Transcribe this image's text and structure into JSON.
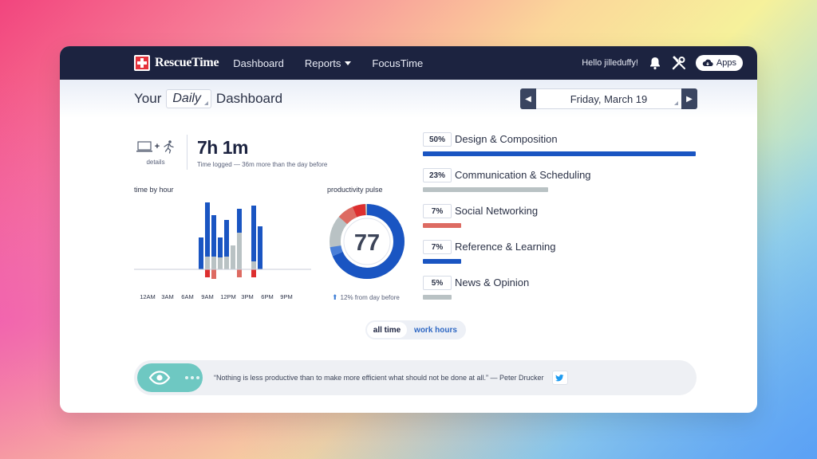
{
  "nav": {
    "brand": "RescueTime",
    "links": [
      "Dashboard",
      "Reports",
      "FocusTime"
    ],
    "greeting": "Hello jilleduffy!",
    "apps_label": "Apps"
  },
  "header": {
    "title_prefix": "Your",
    "period": "Daily",
    "title_suffix": "Dashboard",
    "date": "Friday, March 19"
  },
  "summary": {
    "details_label": "details",
    "total_time": "7h 1m",
    "total_sub": "Time logged — 36m more than the day before"
  },
  "time_by_hour": {
    "label": "time by hour",
    "tick_labels": [
      "12AM",
      "3AM",
      "6AM",
      "9AM",
      "12PM",
      "3PM",
      "6PM",
      "9PM"
    ]
  },
  "pulse": {
    "label": "productivity pulse",
    "score": "77",
    "change": "12% from day before"
  },
  "categories": [
    {
      "pct": "50%",
      "name": "Design & Composition",
      "value": 50,
      "color": "#1a55c2"
    },
    {
      "pct": "23%",
      "name": "Communication & Scheduling",
      "value": 23,
      "color": "#b9c2c4"
    },
    {
      "pct": "7%",
      "name": "Social Networking",
      "value": 7,
      "color": "#dd6b62"
    },
    {
      "pct": "7%",
      "name": "Reference & Learning",
      "value": 7,
      "color": "#1a55c2"
    },
    {
      "pct": "5%",
      "name": "News & Opinion",
      "value": 5,
      "color": "#b9c2c4"
    }
  ],
  "toggle": {
    "all_time": "all time",
    "work_hours": "work hours"
  },
  "quote": {
    "text": "“Nothing is less productive than to make more efficient what should not be done at all.” — Peter Drucker"
  },
  "colors": {
    "navy": "#1c2340",
    "blue": "#1a55c2",
    "grey": "#b9c2c4",
    "red": "#dd2f2f",
    "teal": "#6ec8c2"
  }
}
